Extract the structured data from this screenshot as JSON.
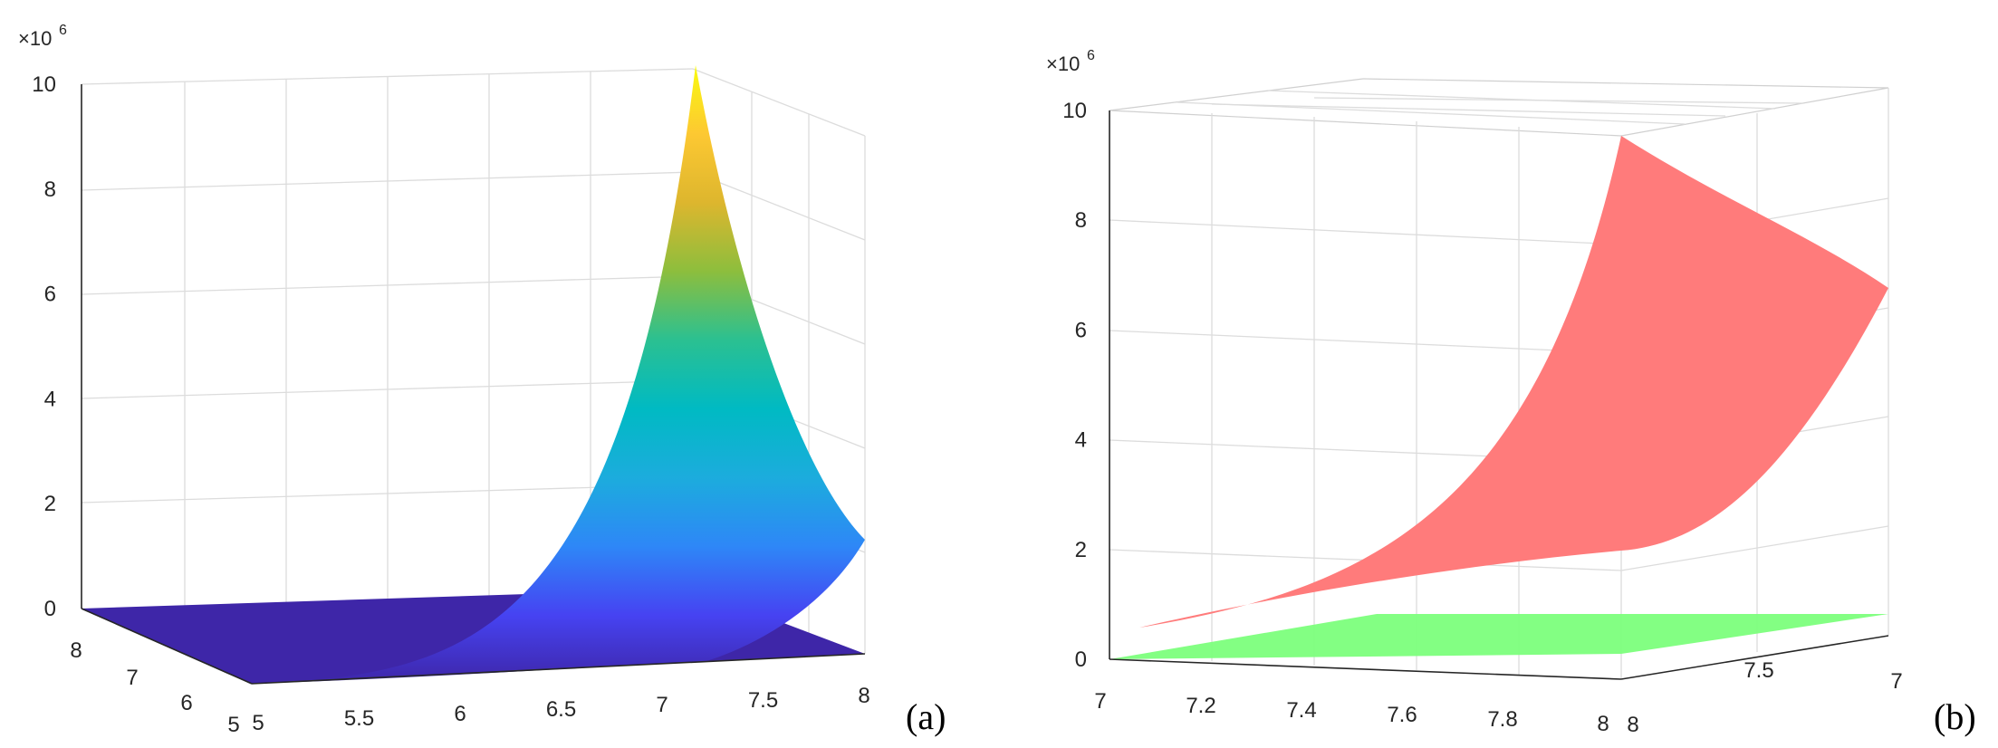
{
  "chart_data": [
    {
      "type": "surface3d",
      "panel_label": "(a)",
      "z_exponent_base": "×10",
      "z_exponent_power": "6",
      "z_ticks": [
        "0",
        "2",
        "4",
        "6",
        "8",
        "10"
      ],
      "y_ticks": [
        "8",
        "7",
        "6",
        "5"
      ],
      "x_ticks": [
        "5",
        "5.5",
        "6",
        "6.5",
        "7",
        "7.5",
        "8"
      ],
      "xlim": [
        5,
        8
      ],
      "ylim": [
        5,
        8
      ],
      "zlim": [
        0,
        10000000
      ],
      "colormap": [
        "#3e26a8",
        "#4643f2",
        "#2e87f7",
        "#1cacdd",
        "#00bac3",
        "#2bc091",
        "#8dbe3d",
        "#ddb62e",
        "#fdc832",
        "#f9fb0e"
      ],
      "surface": {
        "peak": {
          "x": 7,
          "y": 5,
          "z": 10000000
        },
        "corner_x8_y5": {
          "x": 8,
          "y": 5,
          "z": 2000000
        },
        "far_corners": {
          "x5_y8": 0,
          "x8_y8": 0
        },
        "shape": "exponential rise toward corner x=7, y=5"
      },
      "grid": true
    },
    {
      "type": "surface3d",
      "panel_label": "(b)",
      "z_exponent_base": "×10",
      "z_exponent_power": "6",
      "z_ticks": [
        "0",
        "2",
        "4",
        "6",
        "8",
        "10"
      ],
      "x_ticks": [
        "7",
        "7.2",
        "7.4",
        "7.6",
        "7.8",
        "8"
      ],
      "y_ticks": [
        "8",
        "7.5",
        "7"
      ],
      "xlim": [
        7,
        8
      ],
      "ylim": [
        7,
        8
      ],
      "zlim": [
        0,
        10000000
      ],
      "series": [
        {
          "color": "#ff7b7b",
          "opacity": 0.9,
          "corner_values": {
            "x7_y8": 600000,
            "x8_y8": 2000000,
            "x8_y7": 9500000,
            "x7_y7": 7000000
          }
        },
        {
          "color": "#7cff7c",
          "opacity": 0.9,
          "corner_values": {
            "x7_y8": 0,
            "x8_y8": 0,
            "x8_y7": 800000,
            "x7_y7": 600000
          }
        }
      ],
      "grid": true
    }
  ]
}
